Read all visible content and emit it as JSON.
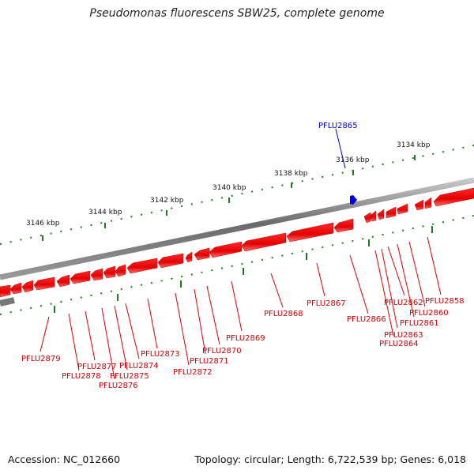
{
  "title": "Pseudomonas fluorescens SBW25, complete genome",
  "footer": {
    "accession": "Accession: NC_012660",
    "summary": "Topology: circular; Length: 6,722,539 bp; Genes: 6,018"
  },
  "scale_labels": [
    "3134 kbp",
    "3136 kbp",
    "3138 kbp",
    "3140 kbp",
    "3142 kbp",
    "3144 kbp",
    "3146 kbp"
  ],
  "highlighted_gene": "PFLU2865",
  "genes": [
    "PFLU2858",
    "PFLU2860",
    "PFLU2861",
    "PFLU2862",
    "PFLU2863",
    "PFLU2864",
    "PFLU2866",
    "PFLU2867",
    "PFLU2868",
    "PFLU2869",
    "PFLU2870",
    "PFLU2871",
    "PFLU2872",
    "PFLU2873",
    "PFLU2874",
    "PFLU2875",
    "PFLU2876",
    "PFLU2877",
    "PFLU2878",
    "PFLU2879"
  ],
  "colors": {
    "gene": "#ee0000",
    "highlight": "#0000ee",
    "tick": "#1f7a1f",
    "backbone": "#777777"
  }
}
